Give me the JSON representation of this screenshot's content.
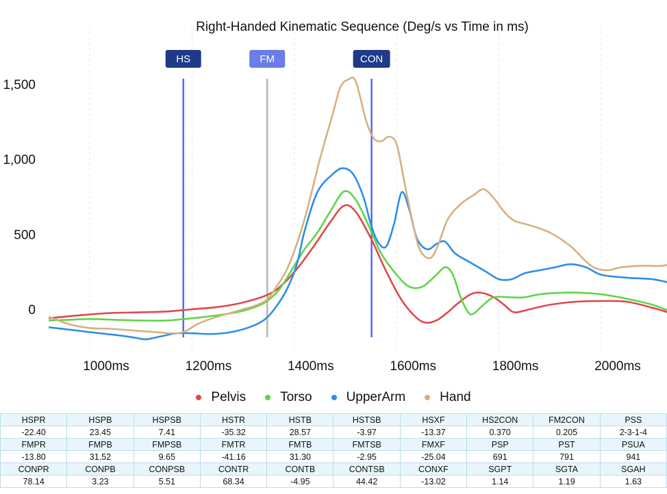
{
  "chart_data": {
    "type": "line",
    "title": "Right-Handed Kinematic Sequence (Deg/s vs Time in ms)",
    "x_unit": "ms",
    "xlim": [
      920,
      2175
    ],
    "ylim": [
      -250,
      1700
    ],
    "x_ticks": [
      1000,
      1200,
      1400,
      1600,
      1800,
      2000
    ],
    "x_tick_labels": [
      "1000ms",
      "1200ms",
      "1400ms",
      "1600ms",
      "1800ms",
      "2000ms"
    ],
    "y_ticks": [
      0,
      500,
      1000,
      1500
    ],
    "y_tick_labels": [
      "0",
      "500",
      "1,000",
      "1,500"
    ],
    "grid": "vertical dashed",
    "legend_position": "bottom-center",
    "markers": [
      {
        "label": "HS",
        "x": 1183,
        "color": "#5469e6",
        "badge_color": "#1f3a8a"
      },
      {
        "label": "FM",
        "x": 1347,
        "color": "#b5b5b5",
        "badge_color": "#6a7de8"
      },
      {
        "label": "CON",
        "x": 1551,
        "color": "#5469e6",
        "badge_color": "#1f3a8a"
      }
    ],
    "series": [
      {
        "name": "Pelvis",
        "color": "#e0474c",
        "points": [
          [
            920,
            -60
          ],
          [
            980,
            -40
          ],
          [
            1040,
            -25
          ],
          [
            1100,
            -20
          ],
          [
            1150,
            -15
          ],
          [
            1200,
            0
          ],
          [
            1250,
            15
          ],
          [
            1300,
            45
          ],
          [
            1350,
            100
          ],
          [
            1380,
            175
          ],
          [
            1410,
            290
          ],
          [
            1440,
            430
          ],
          [
            1470,
            580
          ],
          [
            1497,
            690
          ],
          [
            1520,
            650
          ],
          [
            1550,
            470
          ],
          [
            1580,
            250
          ],
          [
            1610,
            60
          ],
          [
            1640,
            -60
          ],
          [
            1660,
            -90
          ],
          [
            1680,
            -70
          ],
          [
            1700,
            -20
          ],
          [
            1720,
            40
          ],
          [
            1745,
            100
          ],
          [
            1765,
            110
          ],
          [
            1790,
            80
          ],
          [
            1810,
            30
          ],
          [
            1830,
            -20
          ],
          [
            1860,
            0
          ],
          [
            1900,
            30
          ],
          [
            1950,
            50
          ],
          [
            2000,
            55
          ],
          [
            2050,
            50
          ],
          [
            2100,
            10
          ],
          [
            2140,
            -30
          ],
          [
            2175,
            -60
          ]
        ]
      },
      {
        "name": "Torso",
        "color": "#5fd447",
        "points": [
          [
            920,
            -75
          ],
          [
            960,
            -70
          ],
          [
            1000,
            -65
          ],
          [
            1050,
            -70
          ],
          [
            1100,
            -75
          ],
          [
            1150,
            -75
          ],
          [
            1200,
            -60
          ],
          [
            1250,
            -40
          ],
          [
            1300,
            -10
          ],
          [
            1340,
            40
          ],
          [
            1370,
            130
          ],
          [
            1400,
            290
          ],
          [
            1420,
            400
          ],
          [
            1445,
            510
          ],
          [
            1470,
            650
          ],
          [
            1497,
            785
          ],
          [
            1520,
            730
          ],
          [
            1545,
            560
          ],
          [
            1570,
            370
          ],
          [
            1600,
            230
          ],
          [
            1625,
            150
          ],
          [
            1650,
            150
          ],
          [
            1675,
            220
          ],
          [
            1695,
            280
          ],
          [
            1710,
            230
          ],
          [
            1725,
            80
          ],
          [
            1740,
            -20
          ],
          [
            1750,
            -30
          ],
          [
            1770,
            30
          ],
          [
            1790,
            80
          ],
          [
            1820,
            80
          ],
          [
            1850,
            80
          ],
          [
            1880,
            100
          ],
          [
            1920,
            110
          ],
          [
            1960,
            110
          ],
          [
            2000,
            100
          ],
          [
            2050,
            70
          ],
          [
            2100,
            30
          ],
          [
            2140,
            -20
          ],
          [
            2175,
            -60
          ]
        ]
      },
      {
        "name": "UpperArm",
        "color": "#2b8fe8",
        "points": [
          [
            920,
            -120
          ],
          [
            970,
            -140
          ],
          [
            1020,
            -160
          ],
          [
            1060,
            -175
          ],
          [
            1090,
            -190
          ],
          [
            1110,
            -200
          ],
          [
            1140,
            -180
          ],
          [
            1170,
            -160
          ],
          [
            1200,
            -160
          ],
          [
            1240,
            -165
          ],
          [
            1280,
            -150
          ],
          [
            1320,
            -110
          ],
          [
            1345,
            -60
          ],
          [
            1365,
            20
          ],
          [
            1385,
            130
          ],
          [
            1405,
            300
          ],
          [
            1420,
            520
          ],
          [
            1445,
            780
          ],
          [
            1475,
            900
          ],
          [
            1495,
            940
          ],
          [
            1515,
            900
          ],
          [
            1535,
            750
          ],
          [
            1550,
            560
          ],
          [
            1565,
            440
          ],
          [
            1580,
            420
          ],
          [
            1595,
            570
          ],
          [
            1610,
            780
          ],
          [
            1625,
            660
          ],
          [
            1640,
            470
          ],
          [
            1660,
            400
          ],
          [
            1680,
            440
          ],
          [
            1695,
            450
          ],
          [
            1715,
            370
          ],
          [
            1745,
            310
          ],
          [
            1775,
            250
          ],
          [
            1800,
            200
          ],
          [
            1825,
            200
          ],
          [
            1850,
            240
          ],
          [
            1880,
            260
          ],
          [
            1910,
            280
          ],
          [
            1940,
            300
          ],
          [
            1970,
            280
          ],
          [
            2000,
            230
          ],
          [
            2050,
            210
          ],
          [
            2100,
            200
          ],
          [
            2140,
            170
          ],
          [
            2175,
            125
          ]
        ]
      },
      {
        "name": "Hand",
        "color": "#d6b07f",
        "points": [
          [
            920,
            -50
          ],
          [
            960,
            -100
          ],
          [
            1000,
            -125
          ],
          [
            1040,
            -130
          ],
          [
            1080,
            -140
          ],
          [
            1120,
            -150
          ],
          [
            1160,
            -160
          ],
          [
            1185,
            -150
          ],
          [
            1210,
            -100
          ],
          [
            1240,
            -60
          ],
          [
            1270,
            -30
          ],
          [
            1300,
            0
          ],
          [
            1320,
            20
          ],
          [
            1345,
            60
          ],
          [
            1365,
            150
          ],
          [
            1390,
            300
          ],
          [
            1420,
            600
          ],
          [
            1450,
            1000
          ],
          [
            1475,
            1300
          ],
          [
            1490,
            1480
          ],
          [
            1505,
            1530
          ],
          [
            1520,
            1520
          ],
          [
            1540,
            1260
          ],
          [
            1555,
            1140
          ],
          [
            1570,
            1120
          ],
          [
            1585,
            1150
          ],
          [
            1600,
            1100
          ],
          [
            1615,
            850
          ],
          [
            1630,
            600
          ],
          [
            1645,
            400
          ],
          [
            1665,
            340
          ],
          [
            1680,
            420
          ],
          [
            1700,
            600
          ],
          [
            1725,
            700
          ],
          [
            1750,
            760
          ],
          [
            1770,
            800
          ],
          [
            1790,
            740
          ],
          [
            1810,
            650
          ],
          [
            1830,
            590
          ],
          [
            1860,
            560
          ],
          [
            1900,
            510
          ],
          [
            1940,
            420
          ],
          [
            1980,
            290
          ],
          [
            2010,
            260
          ],
          [
            2040,
            280
          ],
          [
            2080,
            290
          ],
          [
            2120,
            290
          ],
          [
            2150,
            320
          ],
          [
            2175,
            320
          ]
        ]
      }
    ]
  },
  "legend": {
    "items": [
      {
        "label": "Pelvis",
        "color": "#e0474c"
      },
      {
        "label": "Torso",
        "color": "#5fd447"
      },
      {
        "label": "UpperArm",
        "color": "#2b8fe8"
      },
      {
        "label": "Hand",
        "color": "#d6b07f"
      }
    ]
  },
  "metrics": {
    "rows": [
      {
        "headers": [
          "HSPR",
          "HSPB",
          "HSPSB",
          "HSTR",
          "HSTB",
          "HSTSB",
          "HSXF",
          "HS2CON",
          "FM2CON",
          "PSS"
        ],
        "values": [
          "-22.40",
          "23.45",
          "7.41",
          "-35.32",
          "28.57",
          "-3.97",
          "-13.37",
          "0.370",
          "0.205",
          "2-3-1-4"
        ]
      },
      {
        "headers": [
          "FMPR",
          "FMPB",
          "FMPSB",
          "FMTR",
          "FMTB",
          "FMTSB",
          "FMXF",
          "PSP",
          "PST",
          "PSUA"
        ],
        "values": [
          "-13.80",
          "31.52",
          "9.65",
          "-41.16",
          "31.30",
          "-2.95",
          "-25.04",
          "691",
          "791",
          "941"
        ]
      },
      {
        "headers": [
          "CONPR",
          "CONPB",
          "CONPSB",
          "CONTR",
          "CONTB",
          "CONTSB",
          "CONXF",
          "SGPT",
          "SGTA",
          "SGAH"
        ],
        "values": [
          "78.14",
          "3.23",
          "5.51",
          "68.34",
          "-4.95",
          "44.42",
          "-13.02",
          "1.14",
          "1.19",
          "1.63"
        ]
      }
    ]
  }
}
